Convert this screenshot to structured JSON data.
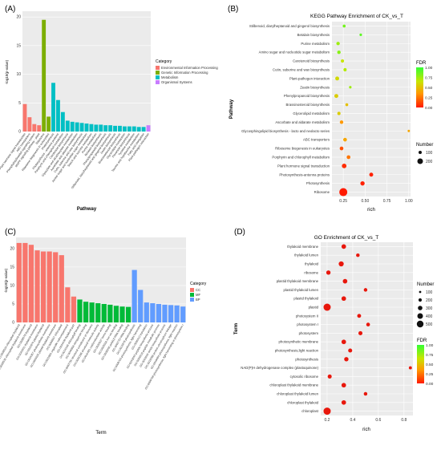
{
  "chart_data": [
    {
      "panel": "(A)",
      "type": "bar",
      "xlabel": "Pathway",
      "ylabel": "-log10(p-value)",
      "ylim": [
        0,
        21
      ],
      "yticks": [
        0,
        5,
        10,
        15,
        20
      ],
      "legend_title": "Category",
      "legend": [
        {
          "name": "Environmental Information Processing",
          "color": "#f8766d"
        },
        {
          "name": "Genetic Information Processing",
          "color": "#7cae00"
        },
        {
          "name": "Metabolism",
          "color": "#00bfc4"
        },
        {
          "name": "Organismal Systems",
          "color": "#c77cff"
        }
      ],
      "categories": [
        "Plant hormone signal transduction",
        "ABC transporters",
        "Phosphatidylinositol signaling system",
        "MAPK signaling pathway - plant",
        "Ribosome",
        "Ribosome biogenesis in eukaryotes",
        "Photosynthesis",
        "Photosynthesis - antenna proteins",
        "Porphyrin and chlorophyll metabolism",
        "Carotenoid biosynthesis",
        "Glyoxylate and dicarboxylate metabolism",
        "Ascorbate and aldarate metabolism",
        "Cutin, suberine and wax biosynthesis",
        "Amino sugar and nucleotide sugar metabolism",
        "Starch and sucrose metabolism",
        "Purine metabolism",
        "Betalain biosynthesis",
        "Phenylpropanoid biosynthesis",
        "Stilbenoid, diarylheptanoid and gingerol biosynthesis",
        "Zeatin biosynthesis",
        "Brassinosteroid biosynthesis",
        "Glycerolipid metabolism",
        "Flavonoid biosynthesis",
        "Tyrosine metabolism",
        "Taurine and hypotaurine metabolism",
        "Fatty acid elongation",
        "Plant-pathogen interaction"
      ],
      "values": [
        4.8,
        2.5,
        1.3,
        1.1,
        19.5,
        2.6,
        8.5,
        5.5,
        3.4,
        1.9,
        1.7,
        1.6,
        1.5,
        1.4,
        1.3,
        1.2,
        1.2,
        1.1,
        1.1,
        1.0,
        1.0,
        0.9,
        0.9,
        0.9,
        0.8,
        0.8,
        1.1
      ],
      "groups": [
        0,
        0,
        0,
        0,
        1,
        1,
        2,
        2,
        2,
        2,
        2,
        2,
        2,
        2,
        2,
        2,
        2,
        2,
        2,
        2,
        2,
        2,
        2,
        2,
        2,
        2,
        3
      ]
    },
    {
      "panel": "(B)",
      "type": "scatter",
      "title": "KEGG Pathway Enrichment of CK_vs_T",
      "xlabel": "rich",
      "ylabel": "Pathway",
      "xlim": [
        0.12,
        1.02
      ],
      "xticks": [
        "0.25",
        "0.50",
        "0.75",
        "1.00"
      ],
      "xtick_values": [
        0.25,
        0.5,
        0.75,
        1.0
      ],
      "pathways": [
        "Stilbenoid, diarylheptanoid and gingerol biosynthesis",
        "Betalain biosynthesis",
        "Purine metabolism",
        "Amino sugar and nucleotide sugar metabolism",
        "Carotenoid biosynthesis",
        "Cutin, suberine and wax biosynthesis",
        "Plant-pathogen interaction",
        "Zeatin biosynthesis",
        "Phenylpropanoid biosynthesis",
        "Brassinosteroid biosynthesis",
        "Glycerolipid metabolism",
        "Ascorbate and aldarate metabolism",
        "Glycosphingolipid biosynthesis - lacto and neolacto series",
        "ABC transporters",
        "Ribosome biogenesis in eukaryotes",
        "Porphyrin and chlorophyll metabolism",
        "Plant hormone signal transduction",
        "Photosynthesis-antenna proteins",
        "Photosynthesis",
        "Ribosome"
      ],
      "rich": [
        0.26,
        0.45,
        0.19,
        0.2,
        0.24,
        0.27,
        0.18,
        0.33,
        0.17,
        0.29,
        0.2,
        0.23,
        1.0,
        0.27,
        0.23,
        0.31,
        0.26,
        0.57,
        0.47,
        0.25
      ],
      "number": [
        10,
        5,
        20,
        20,
        15,
        15,
        30,
        5,
        30,
        10,
        15,
        20,
        3,
        25,
        25,
        25,
        50,
        30,
        40,
        230
      ],
      "fdr": [
        0.85,
        0.9,
        0.75,
        0.8,
        0.65,
        0.7,
        0.6,
        0.75,
        0.55,
        0.5,
        0.55,
        0.35,
        0.4,
        0.4,
        0.15,
        0.25,
        0.05,
        0.02,
        0.02,
        0.0
      ],
      "legend_fdr_title": "FDR",
      "legend_fdr_ticks": [
        "1.00",
        "0.75",
        "0.50",
        "0.25",
        "0.00"
      ],
      "legend_number_title": "Number",
      "legend_number": [
        "100",
        "200"
      ]
    },
    {
      "panel": "(C)",
      "type": "bar",
      "xlabel": "Term",
      "ylabel": "-log10(p-value)",
      "ylim": [
        0,
        23
      ],
      "yticks": [
        0,
        5,
        10,
        15,
        20
      ],
      "legend_title": "Category",
      "legend": [
        {
          "name": "CC",
          "color": "#f8766d"
        },
        {
          "name": "MF",
          "color": "#00ba38"
        },
        {
          "name": "BP",
          "color": "#619cff"
        }
      ],
      "categories": [
        "GO:0009534 chloroplast thylakoid",
        "GO:0009535 chloroplast thylakoid membrane",
        "GO:0009579 thylakoid",
        "GO:0042651 thylakoid membrane",
        "GO:0031976 plastid thylakoid",
        "GO:0034357 photosynthetic membrane",
        "GO:0055035 plastid thylakoid membrane",
        "GO:0009507 chloroplast",
        "GO:0031984 organelle subcompartment",
        "GO:0044436 thylakoid part",
        "GO:0016168 chlorophyll binding",
        "GO:0046906 tetrapyrrole binding",
        "GO:0003735 structural constituent of ribosome",
        "GO:0005198 structural molecule activity",
        "GO:0016491 oxidoreductase activity",
        "GO:0020037 heme binding",
        "GO:0005506 iron ion binding",
        "GO:0008266 poly(U) RNA binding",
        "GO:0003723 RNA binding",
        "GO:0015979 photosynthesis",
        "GO:0009765 photosynthesis, light harvesting",
        "GO:0006412 translation",
        "GO:0043043 peptide biosynthetic process",
        "GO:0006518 peptide metabolic process",
        "GO:0043604 amide biosynthetic process",
        "GO:0018298 protein-chromophore linkage",
        "GO:0019684 photosynthesis, light reaction",
        "GO:0009768 photosynthesis, light harvesting in photosystem I"
      ],
      "values": [
        21.5,
        21.5,
        21.0,
        19.5,
        19.2,
        19.2,
        19.0,
        18.2,
        9.5,
        7.0,
        6.2,
        5.6,
        5.4,
        5.2,
        5.0,
        4.8,
        4.5,
        4.3,
        4.2,
        14.2,
        8.8,
        5.4,
        5.2,
        5.0,
        4.8,
        4.7,
        4.6,
        4.3
      ],
      "groups": [
        0,
        0,
        0,
        0,
        0,
        0,
        0,
        0,
        0,
        0,
        1,
        1,
        1,
        1,
        1,
        1,
        1,
        1,
        1,
        2,
        2,
        2,
        2,
        2,
        2,
        2,
        2,
        2
      ]
    },
    {
      "panel": "(D)",
      "type": "scatter",
      "title": "GO Enrichment of CK_vs_T",
      "xlabel": "rich",
      "ylabel": "Term",
      "xlim": [
        0.15,
        0.87
      ],
      "xticks": [
        "0.2",
        "0.4",
        "0.6",
        "0.8"
      ],
      "xtick_values": [
        0.2,
        0.4,
        0.6,
        0.8
      ],
      "terms": [
        "thylakoid membrane",
        "thylakoid lumen",
        "thylakoid",
        "ribosome",
        "plastid thylakoid membrane",
        "plastid thylakoid lumen",
        "plastid thylakoid",
        "plastid",
        "photosystem II",
        "photosystem I",
        "photosystem",
        "photosynthetic membrane",
        "photosynthesis,light reaction",
        "photosynthesis",
        "NAD(P)H dehydrogenase complex (plastoquinone)",
        "cytosolic ribosome",
        "chloroplast thylakoid membrane",
        "chloroplast thylakoid lumen",
        "chloroplast thylakoid",
        "chloroplast"
      ],
      "rich": [
        0.33,
        0.44,
        0.31,
        0.21,
        0.34,
        0.5,
        0.33,
        0.2,
        0.45,
        0.52,
        0.46,
        0.33,
        0.38,
        0.35,
        0.85,
        0.22,
        0.33,
        0.5,
        0.33,
        0.2
      ],
      "number": [
        100,
        30,
        150,
        80,
        100,
        30,
        100,
        500,
        50,
        40,
        60,
        100,
        60,
        80,
        10,
        60,
        100,
        30,
        100,
        500
      ],
      "legend_number_title": "Number",
      "legend_number": [
        "100",
        "200",
        "300",
        "400",
        "500"
      ],
      "legend_fdr_title": "FDR",
      "legend_fdr_ticks": [
        "1.00",
        "0.75",
        "0.50",
        "0.25",
        "0.00"
      ]
    }
  ]
}
